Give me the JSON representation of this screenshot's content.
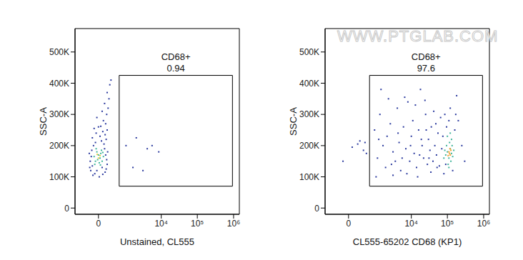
{
  "watermark": "WWW.PTGLAB.COM",
  "chart_data": [
    {
      "type": "scatter",
      "x_label": "Unstained, CL555",
      "y_label": "SSC-A",
      "xlim": [
        -650,
        1440000
      ],
      "ylim": [
        -20000,
        575000
      ],
      "xticks": [
        0,
        {
          "value": 10000,
          "label": "10⁴"
        },
        {
          "value": 100000,
          "label": "10⁵"
        },
        {
          "value": 1000000,
          "label": "10⁶"
        }
      ],
      "yticks": [
        0,
        {
          "value": 100000,
          "label": "100K"
        },
        {
          "value": 200000,
          "label": "200K"
        },
        {
          "value": 300000,
          "label": "300K"
        },
        {
          "value": 400000,
          "label": "400K"
        },
        {
          "value": 500000,
          "label": "500K"
        }
      ],
      "gate": {
        "label": "CD68+",
        "percent": 0.94,
        "x": [
          517,
          930000
        ],
        "y": [
          70000,
          425000
        ]
      },
      "series": [
        {
          "color": "#2b3a9e",
          "values": [
            [
              -120,
              120000
            ],
            [
              -80,
              105000
            ],
            [
              -50,
              110000
            ],
            [
              10,
              100000
            ],
            [
              60,
              108000
            ],
            [
              100,
              115000
            ],
            [
              -140,
              130000
            ],
            [
              -90,
              135000
            ],
            [
              120,
              125000
            ],
            [
              140,
              140000
            ],
            [
              -130,
              150000
            ],
            [
              130,
              155000
            ],
            [
              -110,
              165000
            ],
            [
              110,
              170000
            ],
            [
              -100,
              185000
            ],
            [
              90,
              190000
            ],
            [
              -70,
              200000
            ],
            [
              80,
              205000
            ],
            [
              -40,
              210000
            ],
            [
              40,
              215000
            ],
            [
              120,
              220000
            ],
            [
              -90,
              225000
            ],
            [
              20,
              230000
            ],
            [
              100,
              235000
            ],
            [
              -30,
              240000
            ],
            [
              60,
              245000
            ],
            [
              140,
              250000
            ],
            [
              -60,
              255000
            ],
            [
              30,
              262000
            ],
            [
              110,
              270000
            ],
            [
              70,
              280000
            ],
            [
              -20,
              290000
            ],
            [
              130,
              300000
            ],
            [
              50,
              310000
            ],
            [
              160,
              320000
            ],
            [
              90,
              335000
            ],
            [
              180,
              350000
            ],
            [
              140,
              370000
            ],
            [
              200,
              395000
            ],
            [
              230,
              410000
            ],
            [
              -150,
              175000
            ],
            [
              150,
              180000
            ],
            [
              -20,
              120000
            ],
            [
              50,
              130000
            ],
            [
              0,
              260000
            ],
            [
              1900,
              225000
            ],
            [
              900,
              200000
            ],
            [
              5500,
              200000
            ],
            [
              4000,
              190000
            ],
            [
              8500,
              180000
            ],
            [
              1500,
              130000
            ],
            [
              3000,
              120000
            ]
          ]
        },
        {
          "color": "#3fb59a",
          "values": [
            [
              -40,
              150000
            ],
            [
              -10,
              155000
            ],
            [
              20,
              160000
            ],
            [
              50,
              150000
            ],
            [
              -60,
              165000
            ],
            [
              0,
              170000
            ],
            [
              30,
              175000
            ],
            [
              70,
              165000
            ],
            [
              -20,
              180000
            ],
            [
              10,
              145000
            ],
            [
              40,
              185000
            ],
            [
              -50,
              140000
            ],
            [
              60,
              178000
            ],
            [
              -30,
              190000
            ],
            [
              25,
              138000
            ]
          ]
        },
        {
          "color": "#e8d040",
          "values": [
            [
              0,
              160000
            ],
            [
              20,
              168000
            ],
            [
              -15,
              172000
            ]
          ]
        }
      ]
    },
    {
      "type": "scatter",
      "x_label": "CL555-65202 CD68 (KP1)",
      "y_label": "SSC-A",
      "xlim": [
        -650,
        1440000
      ],
      "ylim": [
        -20000,
        575000
      ],
      "xticks": [
        0,
        {
          "value": 10000,
          "label": "10⁴"
        },
        {
          "value": 100000,
          "label": "10⁵"
        },
        {
          "value": 1000000,
          "label": "10⁶"
        }
      ],
      "yticks": [
        0,
        {
          "value": 100000,
          "label": "100K"
        },
        {
          "value": 200000,
          "label": "200K"
        },
        {
          "value": 300000,
          "label": "300K"
        },
        {
          "value": 400000,
          "label": "400K"
        },
        {
          "value": 500000,
          "label": "500K"
        }
      ],
      "gate": {
        "label": "CD68+",
        "percent": 97.6,
        "x": [
          530,
          930000
        ],
        "y": [
          70000,
          425000
        ]
      },
      "series": [
        {
          "color": "#2b3a9e",
          "values": [
            [
              50,
              195000
            ],
            [
              150,
              205000
            ],
            [
              300,
              185000
            ],
            [
              -80,
              150000
            ],
            [
              400,
              175000
            ],
            [
              200,
              215000
            ],
            [
              350,
              210000
            ],
            [
              800,
              250000
            ],
            [
              1000,
              160000
            ],
            [
              1200,
              300000
            ],
            [
              1500,
              200000
            ],
            [
              1800,
              130000
            ],
            [
              2000,
              230000
            ],
            [
              2500,
              270000
            ],
            [
              3000,
              180000
            ],
            [
              3500,
              150000
            ],
            [
              4000,
              320000
            ],
            [
              4500,
              210000
            ],
            [
              5000,
              120000
            ],
            [
              6000,
              260000
            ],
            [
              7000,
              190000
            ],
            [
              8000,
              340000
            ],
            [
              9000,
              150000
            ],
            [
              10000,
              230000
            ],
            [
              11000,
              280000
            ],
            [
              12000,
              175000
            ],
            [
              14000,
              130000
            ],
            [
              16000,
              250000
            ],
            [
              18000,
              380000
            ],
            [
              20000,
              200000
            ],
            [
              22000,
              160000
            ],
            [
              25000,
              300000
            ],
            [
              28000,
              140000
            ],
            [
              30000,
              220000
            ],
            [
              33000,
              185000
            ],
            [
              36000,
              260000
            ],
            [
              40000,
              150000
            ],
            [
              45000,
              200000
            ],
            [
              50000,
              170000
            ],
            [
              55000,
              240000
            ],
            [
              60000,
              135000
            ],
            [
              65000,
              290000
            ],
            [
              70000,
              190000
            ],
            [
              1300,
              380000
            ],
            [
              2200,
              350000
            ],
            [
              6500,
              355000
            ],
            [
              13000,
              330000
            ],
            [
              24000,
              345000
            ],
            [
              42000,
              310000
            ],
            [
              900,
              100000
            ],
            [
              3000,
              105000
            ],
            [
              7500,
              110000
            ],
            [
              15000,
              100000
            ],
            [
              35000,
              115000
            ],
            [
              80000,
              110000
            ],
            [
              2700,
              140000
            ],
            [
              5500,
              160000
            ],
            [
              9500,
              200000
            ],
            [
              17000,
              170000
            ],
            [
              26000,
              250000
            ],
            [
              48000,
              270000
            ],
            [
              75000,
              230000
            ],
            [
              85000,
              300000
            ],
            [
              120000,
              320000
            ],
            [
              160000,
              250000
            ],
            [
              200000,
              280000
            ],
            [
              250000,
              200000
            ],
            [
              300000,
              150000
            ],
            [
              180000,
              360000
            ],
            [
              4200,
              240000
            ],
            [
              1100,
              220000
            ],
            [
              19000,
              220000
            ],
            [
              31000,
              160000
            ],
            [
              52000,
              130000
            ],
            [
              90000,
              140000
            ],
            [
              95000,
              260000
            ],
            [
              110000,
              280000
            ],
            [
              140000,
              120000
            ],
            [
              170000,
              300000
            ]
          ]
        },
        {
          "color": "#3fb59a",
          "values": [
            [
              90000,
              170000
            ],
            [
              100000,
              180000
            ],
            [
              110000,
              160000
            ],
            [
              120000,
              190000
            ],
            [
              130000,
              175000
            ],
            [
              95000,
              200000
            ],
            [
              115000,
              210000
            ],
            [
              125000,
              150000
            ],
            [
              105000,
              140000
            ],
            [
              135000,
              200000
            ],
            [
              85000,
              185000
            ],
            [
              140000,
              165000
            ],
            [
              100000,
              230000
            ],
            [
              120000,
              240000
            ],
            [
              110000,
              130000
            ],
            [
              150000,
              185000
            ],
            [
              80000,
              160000
            ],
            [
              130000,
              220000
            ]
          ]
        },
        {
          "color": "#f0a030",
          "values": [
            [
              110000,
              180000
            ],
            [
              120000,
              170000
            ],
            [
              115000,
              175000
            ],
            [
              125000,
              185000
            ],
            [
              105000,
              168000
            ],
            [
              118000,
              190000
            ]
          ]
        }
      ]
    }
  ]
}
